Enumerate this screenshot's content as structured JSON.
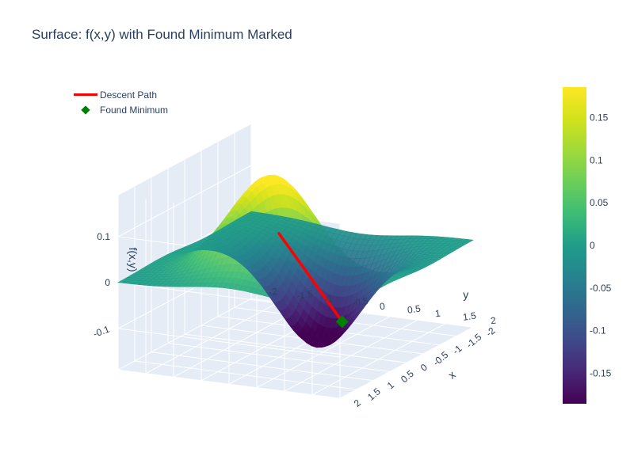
{
  "title": "Surface: f(x,y) with Found Minimum Marked",
  "legend": {
    "path_label": "Descent Path",
    "min_label": "Found Minimum"
  },
  "colors": {
    "path": "#ff0000",
    "minimum": "#008000",
    "pane_bg": "#e5ecf6",
    "grid": "#ffffff"
  },
  "chart_data": {
    "type": "surface",
    "title": "Surface: f(x,y) with Found Minimum Marked",
    "colorscale": "viridis",
    "axes": {
      "x": {
        "title": "x",
        "range": [
          -2,
          2
        ],
        "ticks": [
          "-2",
          "-1.5",
          "-1",
          "-0.5",
          "0",
          "0.5",
          "1",
          "1.5",
          "2"
        ]
      },
      "y": {
        "title": "y",
        "range": [
          -2,
          2
        ],
        "ticks": [
          "-2",
          "-1.5",
          "-1",
          "-0.5",
          "0",
          "0.5",
          "1",
          "1.5",
          "2"
        ]
      },
      "z": {
        "title": "f(x,y)",
        "range": [
          -0.19,
          0.19
        ],
        "ticks": [
          "-0.1",
          "0",
          "0.1"
        ]
      }
    },
    "colorbar": {
      "range": [
        -0.186,
        0.186
      ],
      "ticks": [
        "0.15",
        "0.1",
        "0.05",
        "0",
        "-0.05",
        "-0.1",
        "-0.15"
      ],
      "tick_values": [
        0.15,
        0.1,
        0.05,
        0,
        -0.05,
        -0.1,
        -0.15
      ]
    },
    "series": [
      {
        "name": "Descent Path",
        "type": "line3d",
        "from": [
          0.5,
          0.0,
          0.08
        ],
        "to": [
          -1.4,
          0.0,
          -0.186
        ]
      },
      {
        "name": "Found Minimum",
        "type": "marker3d",
        "point": [
          -1.4,
          0.0,
          -0.186
        ]
      }
    ],
    "legend_position": "top-left"
  }
}
